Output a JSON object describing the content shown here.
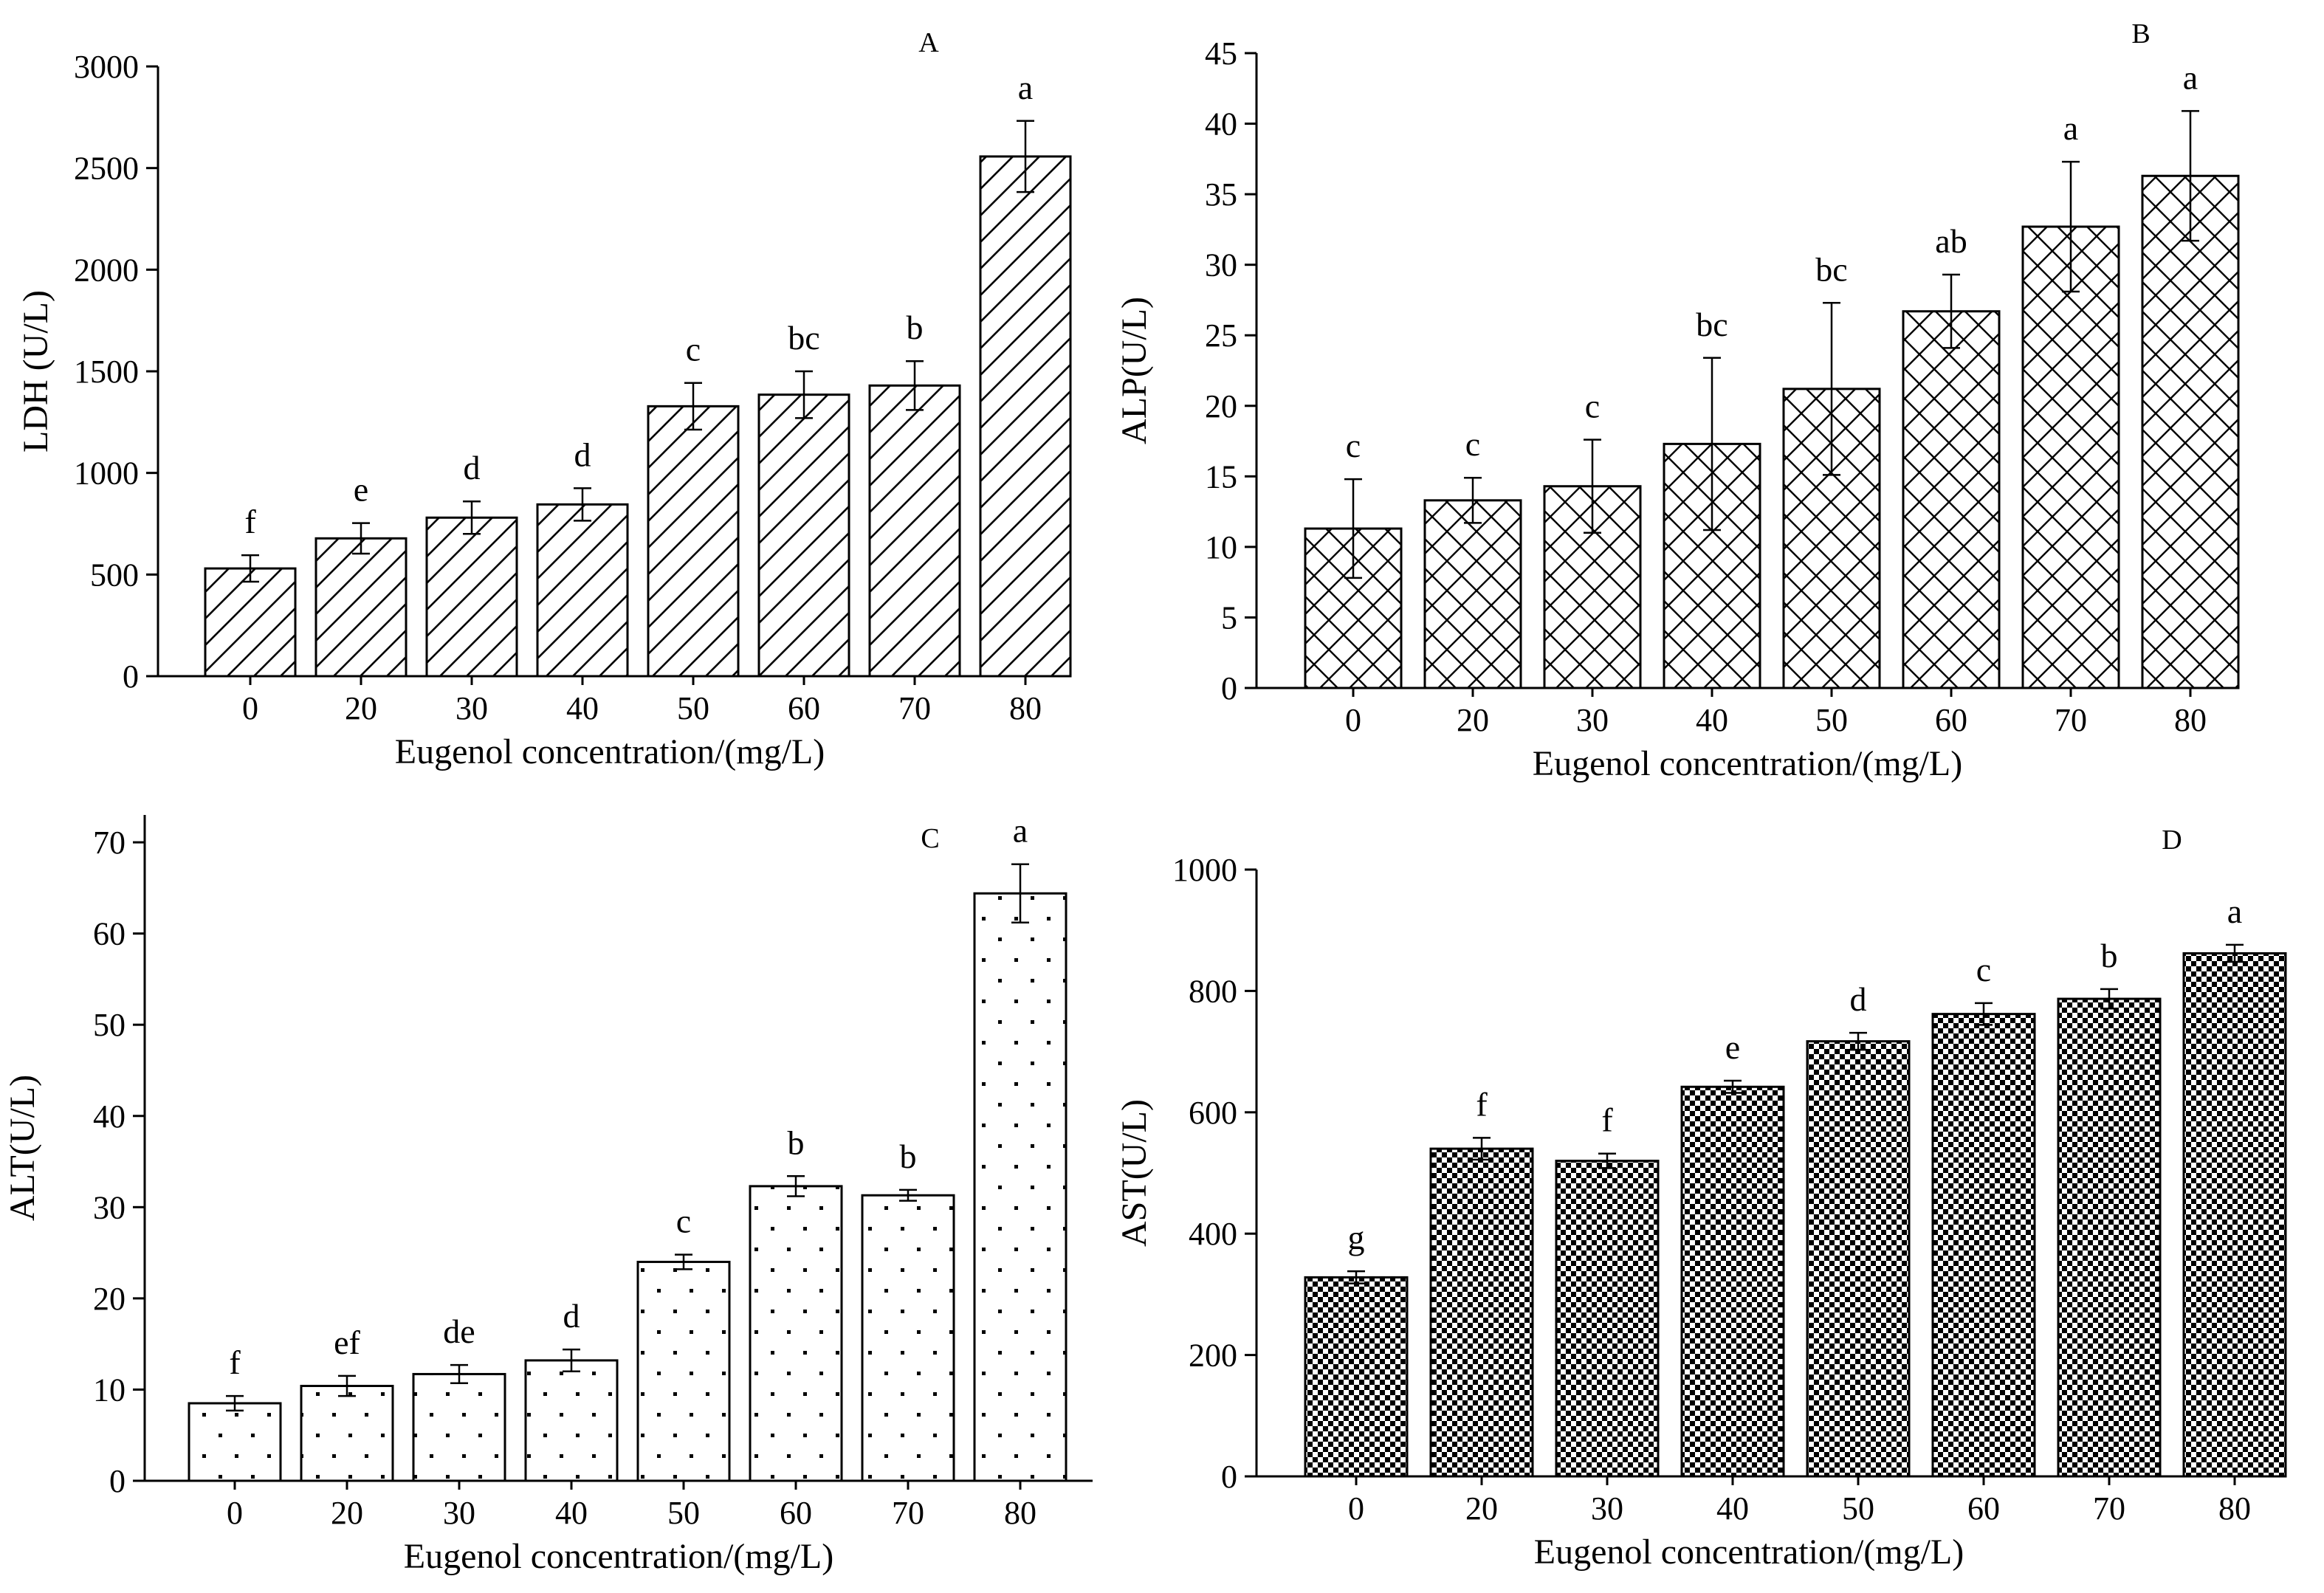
{
  "chart_data": [
    {
      "type": "bar",
      "panel_label": "A",
      "categories": [
        "0",
        "20",
        "30",
        "40",
        "50",
        "60",
        "70",
        "80"
      ],
      "values": [
        530,
        678,
        780,
        845,
        1328,
        1385,
        1430,
        2557
      ],
      "errors": [
        65,
        75,
        80,
        80,
        115,
        115,
        120,
        175
      ],
      "significance_letters": [
        "f",
        "e",
        "d",
        "d",
        "c",
        "bc",
        "b",
        "a"
      ],
      "title": "",
      "xlabel": "Eugenol  concentration/(mg/L)",
      "ylabel": "LDH (U/L)",
      "ylim": [
        0,
        3000
      ],
      "yticks": [
        0,
        500,
        1000,
        1500,
        2000,
        2500,
        3000
      ],
      "pattern": "diagonal-hatch"
    },
    {
      "type": "bar",
      "panel_label": "B",
      "categories": [
        "0",
        "20",
        "30",
        "40",
        "50",
        "60",
        "70",
        "80"
      ],
      "values": [
        11.3,
        13.3,
        14.3,
        17.3,
        21.2,
        26.7,
        32.7,
        36.3
      ],
      "errors": [
        3.5,
        1.6,
        3.3,
        6.1,
        6.1,
        2.6,
        4.6,
        4.6
      ],
      "significance_letters": [
        "c",
        "c",
        "c",
        "bc",
        "bc",
        "ab",
        "a",
        "a"
      ],
      "title": "",
      "xlabel": "Eugenol  concentration/(mg/L)",
      "ylabel": "ALP(U/L)",
      "ylim": [
        0,
        45
      ],
      "yticks": [
        0,
        5,
        10,
        15,
        20,
        25,
        30,
        35,
        40,
        45
      ],
      "pattern": "crosshatch"
    },
    {
      "type": "bar",
      "panel_label": "C",
      "categories": [
        "0",
        "20",
        "30",
        "40",
        "50",
        "60",
        "70",
        "80"
      ],
      "values": [
        8.5,
        10.4,
        11.7,
        13.2,
        24.0,
        32.3,
        31.3,
        64.4
      ],
      "errors": [
        0.8,
        1.1,
        1.0,
        1.2,
        0.8,
        1.1,
        0.6,
        3.2
      ],
      "significance_letters": [
        "f",
        "ef",
        "de",
        "d",
        "c",
        "b",
        "b",
        "a"
      ],
      "title": "",
      "xlabel": "Eugenol concentration/(mg/L)",
      "ylabel": "ALT(U/L)",
      "ylim": [
        0,
        73
      ],
      "yticks": [
        0,
        10,
        20,
        30,
        40,
        50,
        60,
        70
      ],
      "pattern": "dots"
    },
    {
      "type": "bar",
      "panel_label": "D",
      "categories": [
        "0",
        "20",
        "30",
        "40",
        "50",
        "60",
        "70",
        "80"
      ],
      "values": [
        328,
        540,
        520,
        642,
        717,
        762,
        787,
        862
      ],
      "errors": [
        10,
        18,
        12,
        10,
        14,
        18,
        16,
        14
      ],
      "significance_letters": [
        "g",
        "f",
        "f",
        "e",
        "d",
        "c",
        "b",
        "a"
      ],
      "title": "",
      "xlabel": "Eugenol  concentration/(mg/L)",
      "ylabel": "AST(U/L)",
      "ylim": [
        0,
        1000
      ],
      "yticks": [
        0,
        200,
        400,
        600,
        800,
        1000
      ],
      "pattern": "checkerboard"
    }
  ]
}
